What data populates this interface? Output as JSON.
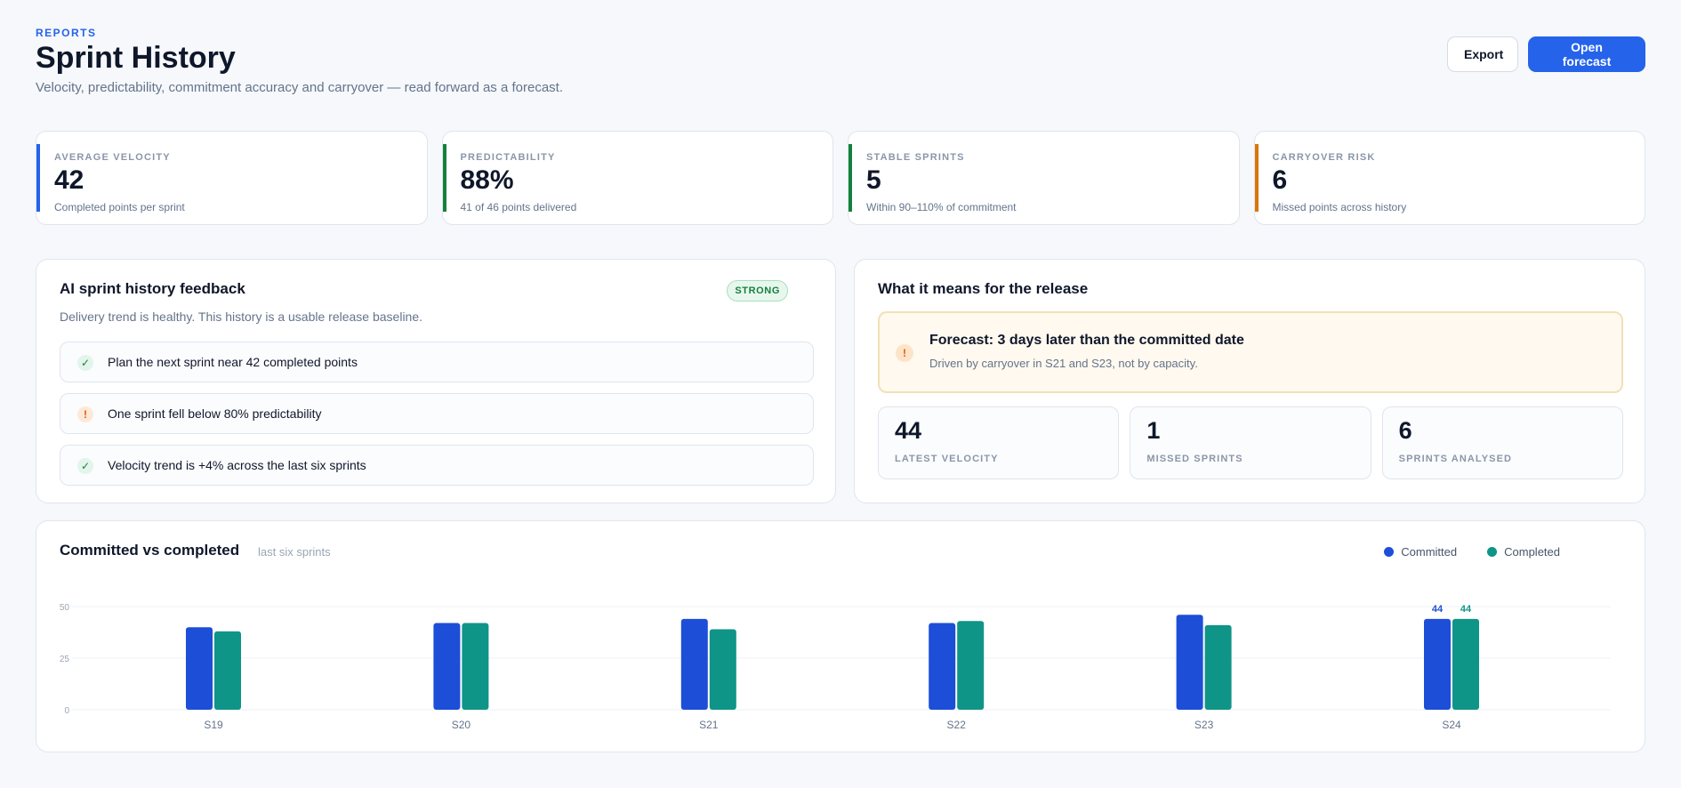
{
  "header": {
    "eyebrow": "REPORTS",
    "title": "Sprint History",
    "subtitle": "Velocity, predictability, commitment accuracy and carryover — read forward as a forecast.",
    "export_label": "Export",
    "open_forecast_label": "Open forecast"
  },
  "kpis": [
    {
      "label": "AVERAGE VELOCITY",
      "value": "42",
      "note": "Completed points per sprint",
      "accent": "#2563eb"
    },
    {
      "label": "PREDICTABILITY",
      "value": "88%",
      "note": "41 of 46 points delivered",
      "accent": "#15803d"
    },
    {
      "label": "STABLE SPRINTS",
      "value": "5",
      "note": "Within 90–110% of commitment",
      "accent": "#15803d"
    },
    {
      "label": "CARRYOVER RISK",
      "value": "6",
      "note": "Missed points across history",
      "accent": "#d97706"
    }
  ],
  "feedback": {
    "title": "AI sprint history feedback",
    "badge": "STRONG",
    "subtitle": "Delivery trend is healthy. This history is a usable release baseline.",
    "items": [
      {
        "status": "ok",
        "icon": "check-icon",
        "text": "Plan the next sprint near 42 completed points"
      },
      {
        "status": "warn",
        "icon": "warning-icon",
        "text": "One sprint fell below 80% predictability"
      },
      {
        "status": "ok",
        "icon": "check-icon",
        "text": "Velocity trend is +4% across the last six sprints"
      }
    ]
  },
  "release": {
    "title": "What it means for the release",
    "forecast_title": "Forecast: 3 days later than the committed date",
    "forecast_sub": "Driven by carryover in S21 and S23, not by capacity.",
    "stats": [
      {
        "value": "44",
        "label": "LATEST VELOCITY"
      },
      {
        "value": "1",
        "label": "MISSED SPRINTS"
      },
      {
        "value": "6",
        "label": "SPRINTS ANALYSED"
      }
    ]
  },
  "chart_panel": {
    "title": "Committed vs completed",
    "hint": "last six sprints"
  },
  "chart_data": {
    "type": "bar",
    "categories": [
      "S19",
      "S20",
      "S21",
      "S22",
      "S23",
      "S24"
    ],
    "series": [
      {
        "name": "Committed",
        "color": "#1d4ed8",
        "values": [
          40,
          42,
          44,
          42,
          46,
          44
        ]
      },
      {
        "name": "Completed",
        "color": "#0f9488",
        "values": [
          38,
          42,
          39,
          43,
          41,
          44
        ]
      }
    ],
    "ylim": [
      0,
      50
    ],
    "yticks": [
      0,
      25,
      50
    ],
    "labeled_category": "S24",
    "grid": true,
    "legend": "top-right"
  }
}
